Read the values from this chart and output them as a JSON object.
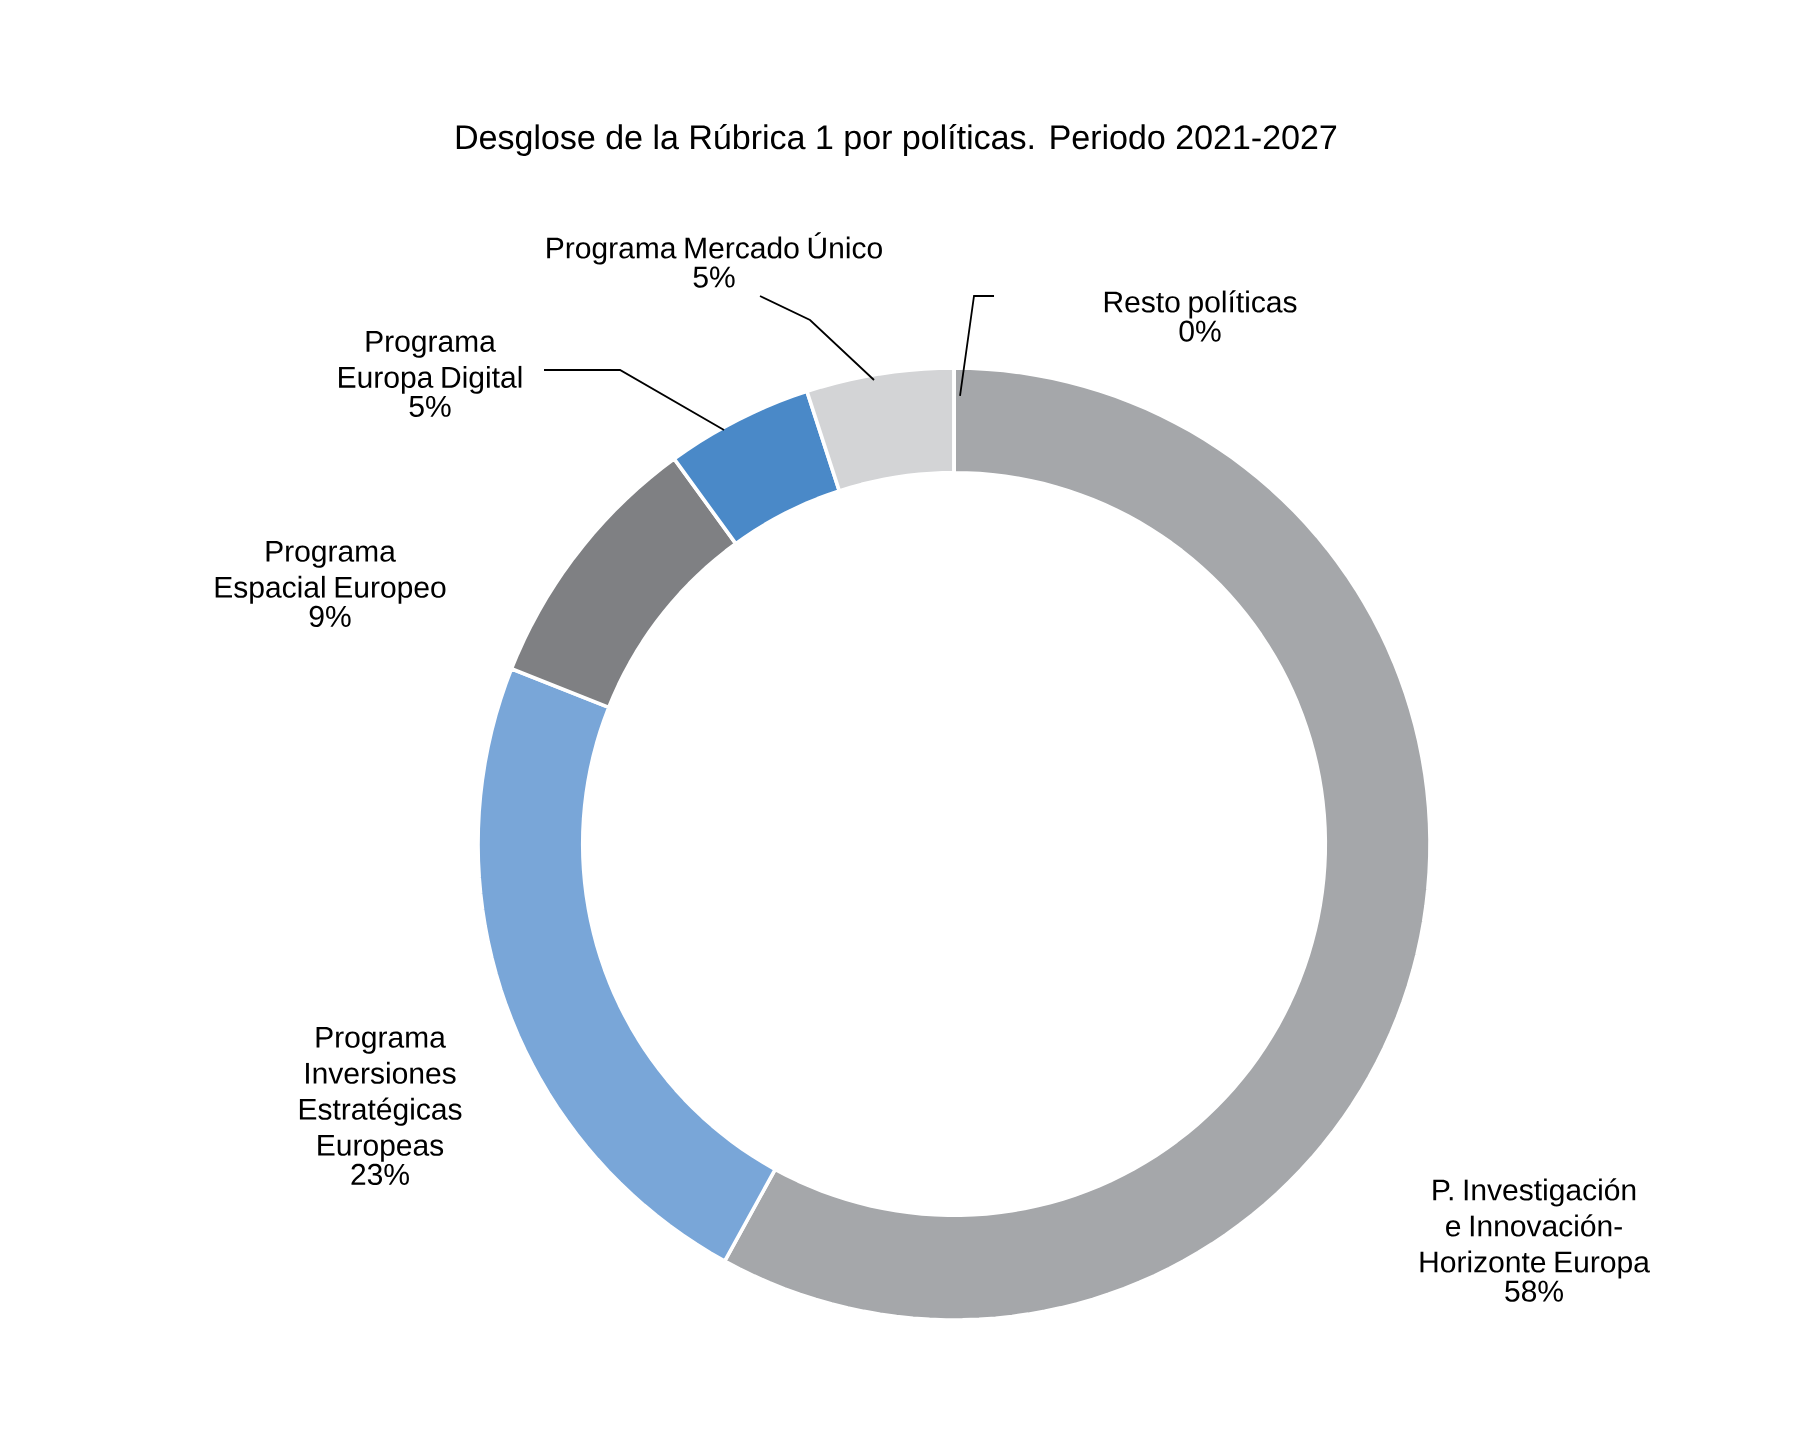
{
  "chart_data": {
    "type": "donut",
    "title": "Desglose de la Rúbrica 1 por políticas. Periodo 2021-2027",
    "categories": [
      "P. Investigación e Innovación-Horizonte Europa",
      "Programa Inversiones Estratégicas Europeas",
      "Programa Espacial Europeo",
      "Programa Europa Digital",
      "Programa Mercado Único",
      "Resto políticas"
    ],
    "values": [
      58,
      23,
      9,
      5,
      5,
      0
    ],
    "value_labels": [
      "58%",
      "23%",
      "9%",
      "5%",
      "5%",
      "0%"
    ],
    "colors": [
      "#a5a7aa",
      "#79a6d8",
      "#7f8083",
      "#4a89c8",
      "#d3d4d6",
      "#5a5b5e"
    ]
  }
}
